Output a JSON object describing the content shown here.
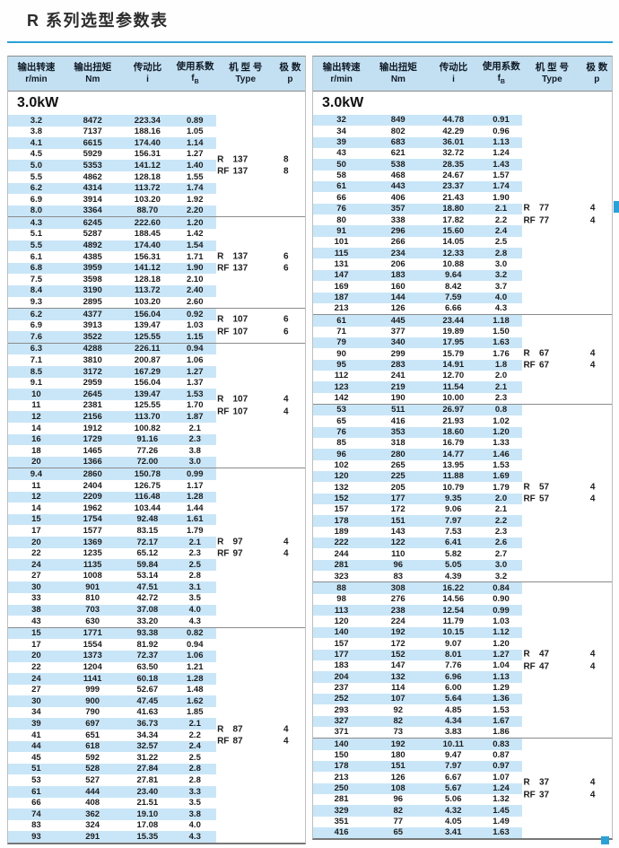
{
  "page": {
    "title": "R 系列选型参数表"
  },
  "power_label": "3.0kW",
  "colors": {
    "accent": "#2ba1d8",
    "stripe": "#c9e6f8",
    "header_bg": "#c3e0f2"
  },
  "header": {
    "cols": [
      {
        "cn": "输出转速",
        "unit": "r/min"
      },
      {
        "cn": "输出扭矩",
        "unit": "Nm"
      },
      {
        "cn": "传动比",
        "unit": "i"
      },
      {
        "cn": "使用系数",
        "unit": "f",
        "unit_sub": "B"
      },
      {
        "cn": "机 型 号",
        "unit": "Type"
      },
      {
        "cn": "极 数",
        "unit": "p"
      }
    ]
  },
  "left_table": {
    "blocks": [
      {
        "models": [
          [
            "R",
            "137"
          ],
          [
            "RF",
            "137"
          ]
        ],
        "poles": [
          "8",
          "8"
        ],
        "rows": [
          [
            "3.2",
            "8472",
            "223.34",
            "0.89"
          ],
          [
            "3.8",
            "7137",
            "188.16",
            "1.05"
          ],
          [
            "4.1",
            "6615",
            "174.40",
            "1.14"
          ],
          [
            "4.5",
            "5929",
            "156.31",
            "1.27"
          ],
          [
            "5.0",
            "5353",
            "141.12",
            "1.40"
          ],
          [
            "5.5",
            "4862",
            "128.18",
            "1.55"
          ],
          [
            "6.2",
            "4314",
            "113.72",
            "1.74"
          ],
          [
            "6.9",
            "3914",
            "103.20",
            "1.92"
          ],
          [
            "8.0",
            "3364",
            "88.70",
            "2.20"
          ]
        ]
      },
      {
        "models": [
          [
            "R",
            "137"
          ],
          [
            "RF",
            "137"
          ]
        ],
        "poles": [
          "6",
          "6"
        ],
        "rows": [
          [
            "4.3",
            "6245",
            "222.60",
            "1.20"
          ],
          [
            "5.1",
            "5287",
            "188.45",
            "1.42"
          ],
          [
            "5.5",
            "4892",
            "174.40",
            "1.54"
          ],
          [
            "6.1",
            "4385",
            "156.31",
            "1.71"
          ],
          [
            "6.8",
            "3959",
            "141.12",
            "1.90"
          ],
          [
            "7.5",
            "3598",
            "128.18",
            "2.10"
          ],
          [
            "8.4",
            "3190",
            "113.72",
            "2.40"
          ],
          [
            "9.3",
            "2895",
            "103.20",
            "2.60"
          ]
        ]
      },
      {
        "models": [
          [
            "R",
            "107"
          ],
          [
            "RF",
            "107"
          ]
        ],
        "poles": [
          "6",
          "6"
        ],
        "rows": [
          [
            "6.2",
            "4377",
            "156.04",
            "0.92"
          ],
          [
            "6.9",
            "3913",
            "139.47",
            "1.03"
          ],
          [
            "7.6",
            "3522",
            "125.55",
            "1.15"
          ]
        ]
      },
      {
        "models": [
          [
            "R",
            "107"
          ],
          [
            "RF",
            "107"
          ]
        ],
        "poles": [
          "4",
          "4"
        ],
        "rows": [
          [
            "6.3",
            "4288",
            "226.11",
            "0.94"
          ],
          [
            "7.1",
            "3810",
            "200.87",
            "1.06"
          ],
          [
            "8.5",
            "3172",
            "167.29",
            "1.27"
          ],
          [
            "9.1",
            "2959",
            "156.04",
            "1.37"
          ],
          [
            "10",
            "2645",
            "139.47",
            "1.53"
          ],
          [
            "11",
            "2381",
            "125.55",
            "1.70"
          ],
          [
            "12",
            "2156",
            "113.70",
            "1.87"
          ],
          [
            "14",
            "1912",
            "100.82",
            "2.1"
          ],
          [
            "16",
            "1729",
            "91.16",
            "2.3"
          ],
          [
            "18",
            "1465",
            "77.26",
            "3.8"
          ],
          [
            "20",
            "1366",
            "72.00",
            "3.0"
          ]
        ]
      },
      {
        "models": [
          [
            "R",
            "97"
          ],
          [
            "RF",
            "97"
          ]
        ],
        "poles": [
          "4",
          "4"
        ],
        "rows": [
          [
            "9.4",
            "2860",
            "150.78",
            "0.99"
          ],
          [
            "11",
            "2404",
            "126.75",
            "1.17"
          ],
          [
            "12",
            "2209",
            "116.48",
            "1.28"
          ],
          [
            "14",
            "1962",
            "103.44",
            "1.44"
          ],
          [
            "15",
            "1754",
            "92.48",
            "1.61"
          ],
          [
            "17",
            "1577",
            "83.15",
            "1.79"
          ],
          [
            "20",
            "1369",
            "72.17",
            "2.1"
          ],
          [
            "22",
            "1235",
            "65.12",
            "2.3"
          ],
          [
            "24",
            "1135",
            "59.84",
            "2.5"
          ],
          [
            "27",
            "1008",
            "53.14",
            "2.8"
          ],
          [
            "30",
            "901",
            "47.51",
            "3.1"
          ],
          [
            "33",
            "810",
            "42.72",
            "3.5"
          ],
          [
            "38",
            "703",
            "37.08",
            "4.0"
          ],
          [
            "43",
            "630",
            "33.20",
            "4.3"
          ]
        ]
      },
      {
        "models": [
          [
            "R",
            "87"
          ],
          [
            "RF",
            "87"
          ]
        ],
        "poles": [
          "4",
          "4"
        ],
        "rows": [
          [
            "15",
            "1771",
            "93.38",
            "0.82"
          ],
          [
            "17",
            "1554",
            "81.92",
            "0.94"
          ],
          [
            "20",
            "1373",
            "72.37",
            "1.06"
          ],
          [
            "22",
            "1204",
            "63.50",
            "1.21"
          ],
          [
            "24",
            "1141",
            "60.18",
            "1.28"
          ],
          [
            "27",
            "999",
            "52.67",
            "1.48"
          ],
          [
            "30",
            "900",
            "47.45",
            "1.62"
          ],
          [
            "34",
            "790",
            "41.63",
            "1.85"
          ],
          [
            "39",
            "697",
            "36.73",
            "2.1"
          ],
          [
            "41",
            "651",
            "34.34",
            "2.2"
          ],
          [
            "44",
            "618",
            "32.57",
            "2.4"
          ],
          [
            "45",
            "592",
            "31.22",
            "2.5"
          ],
          [
            "51",
            "528",
            "27.84",
            "2.8"
          ],
          [
            "53",
            "527",
            "27.81",
            "2.8"
          ],
          [
            "61",
            "444",
            "23.40",
            "3.3"
          ],
          [
            "66",
            "408",
            "21.51",
            "3.5"
          ],
          [
            "74",
            "362",
            "19.10",
            "3.8"
          ],
          [
            "83",
            "324",
            "17.08",
            "4.0"
          ],
          [
            "93",
            "291",
            "15.35",
            "4.3"
          ]
        ]
      }
    ]
  },
  "right_table": {
    "blocks": [
      {
        "models": [
          [
            "R",
            "77"
          ],
          [
            "RF",
            "77"
          ]
        ],
        "poles": [
          "4",
          "4"
        ],
        "rows": [
          [
            "32",
            "849",
            "44.78",
            "0.91"
          ],
          [
            "34",
            "802",
            "42.29",
            "0.96"
          ],
          [
            "39",
            "683",
            "36.01",
            "1.13"
          ],
          [
            "43",
            "621",
            "32.72",
            "1.24"
          ],
          [
            "50",
            "538",
            "28.35",
            "1.43"
          ],
          [
            "58",
            "468",
            "24.67",
            "1.57"
          ],
          [
            "61",
            "443",
            "23.37",
            "1.74"
          ],
          [
            "66",
            "406",
            "21.43",
            "1.90"
          ],
          [
            "76",
            "357",
            "18.80",
            "2.1"
          ],
          [
            "80",
            "338",
            "17.82",
            "2.2"
          ],
          [
            "91",
            "296",
            "15.60",
            "2.4"
          ],
          [
            "101",
            "266",
            "14.05",
            "2.5"
          ],
          [
            "115",
            "234",
            "12.33",
            "2.8"
          ],
          [
            "131",
            "206",
            "10.88",
            "3.0"
          ],
          [
            "147",
            "183",
            "9.64",
            "3.2"
          ],
          [
            "169",
            "160",
            "8.42",
            "3.7"
          ],
          [
            "187",
            "144",
            "7.59",
            "4.0"
          ],
          [
            "213",
            "126",
            "6.66",
            "4.3"
          ]
        ]
      },
      {
        "models": [
          [
            "R",
            "67"
          ],
          [
            "RF",
            "67"
          ]
        ],
        "poles": [
          "4",
          "4"
        ],
        "rows": [
          [
            "61",
            "445",
            "23.44",
            "1.18"
          ],
          [
            "71",
            "377",
            "19.89",
            "1.50"
          ],
          [
            "79",
            "340",
            "17.95",
            "1.63"
          ],
          [
            "90",
            "299",
            "15.79",
            "1.76"
          ],
          [
            "95",
            "283",
            "14.91",
            "1.8"
          ],
          [
            "112",
            "241",
            "12.70",
            "2.0"
          ],
          [
            "123",
            "219",
            "11.54",
            "2.1"
          ],
          [
            "142",
            "190",
            "10.00",
            "2.3"
          ]
        ]
      },
      {
        "models": [
          [
            "R",
            "57"
          ],
          [
            "RF",
            "57"
          ]
        ],
        "poles": [
          "4",
          "4"
        ],
        "rows": [
          [
            "53",
            "511",
            "26.97",
            "0.8"
          ],
          [
            "65",
            "416",
            "21.93",
            "1.02"
          ],
          [
            "76",
            "353",
            "18.60",
            "1.20"
          ],
          [
            "85",
            "318",
            "16.79",
            "1.33"
          ],
          [
            "96",
            "280",
            "14.77",
            "1.46"
          ],
          [
            "102",
            "265",
            "13.95",
            "1.53"
          ],
          [
            "120",
            "225",
            "11.88",
            "1.69"
          ],
          [
            "132",
            "205",
            "10.79",
            "1.79"
          ],
          [
            "152",
            "177",
            "9.35",
            "2.0"
          ],
          [
            "157",
            "172",
            "9.06",
            "2.1"
          ],
          [
            "178",
            "151",
            "7.97",
            "2.2"
          ],
          [
            "189",
            "143",
            "7.53",
            "2.3"
          ],
          [
            "222",
            "122",
            "6.41",
            "2.6"
          ],
          [
            "244",
            "110",
            "5.82",
            "2.7"
          ],
          [
            "281",
            "96",
            "5.05",
            "3.0"
          ],
          [
            "323",
            "83",
            "4.39",
            "3.2"
          ]
        ]
      },
      {
        "models": [
          [
            "R",
            "47"
          ],
          [
            "RF",
            "47"
          ]
        ],
        "poles": [
          "4",
          "4"
        ],
        "rows": [
          [
            "88",
            "308",
            "16.22",
            "0.84"
          ],
          [
            "98",
            "276",
            "14.56",
            "0.90"
          ],
          [
            "113",
            "238",
            "12.54",
            "0.99"
          ],
          [
            "120",
            "224",
            "11.79",
            "1.03"
          ],
          [
            "140",
            "192",
            "10.15",
            "1.12"
          ],
          [
            "157",
            "172",
            "9.07",
            "1.20"
          ],
          [
            "177",
            "152",
            "8.01",
            "1.27"
          ],
          [
            "183",
            "147",
            "7.76",
            "1.04"
          ],
          [
            "204",
            "132",
            "6.96",
            "1.13"
          ],
          [
            "237",
            "114",
            "6.00",
            "1.29"
          ],
          [
            "252",
            "107",
            "5.64",
            "1.36"
          ],
          [
            "293",
            "92",
            "4.85",
            "1.53"
          ],
          [
            "327",
            "82",
            "4.34",
            "1.67"
          ],
          [
            "371",
            "73",
            "3.83",
            "1.86"
          ]
        ]
      },
      {
        "models": [
          [
            "R",
            "37"
          ],
          [
            "RF",
            "37"
          ]
        ],
        "poles": [
          "4",
          "4"
        ],
        "rows": [
          [
            "140",
            "192",
            "10.11",
            "0.83"
          ],
          [
            "150",
            "180",
            "9.47",
            "0.87"
          ],
          [
            "178",
            "151",
            "7.97",
            "0.97"
          ],
          [
            "213",
            "126",
            "6.67",
            "1.07"
          ],
          [
            "250",
            "108",
            "5.67",
            "1.24"
          ],
          [
            "281",
            "96",
            "5.06",
            "1.32"
          ],
          [
            "329",
            "82",
            "4.32",
            "1.45"
          ],
          [
            "351",
            "77",
            "4.05",
            "1.49"
          ],
          [
            "416",
            "65",
            "3.41",
            "1.63"
          ]
        ]
      }
    ]
  }
}
